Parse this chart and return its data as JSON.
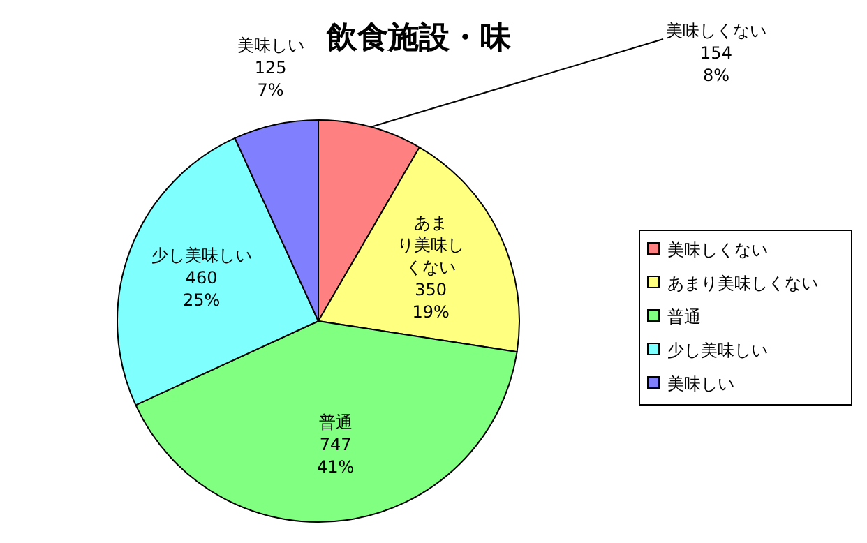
{
  "chart_data": {
    "type": "pie",
    "title": "飲食施設・味",
    "categories": [
      "美味しくない",
      "あまり美味しくない",
      "普通",
      "少し美味しい",
      "美味しい"
    ],
    "values": [
      154,
      350,
      747,
      460,
      125
    ],
    "value_labels": [
      "154\n8%",
      "350\n19%",
      "747\n41%",
      "460\n25%",
      "125\n7%"
    ],
    "colors": [
      "#ff8080",
      "#ffff80",
      "#80ff80",
      "#80ffff",
      "#8080ff"
    ],
    "legend": "right"
  }
}
